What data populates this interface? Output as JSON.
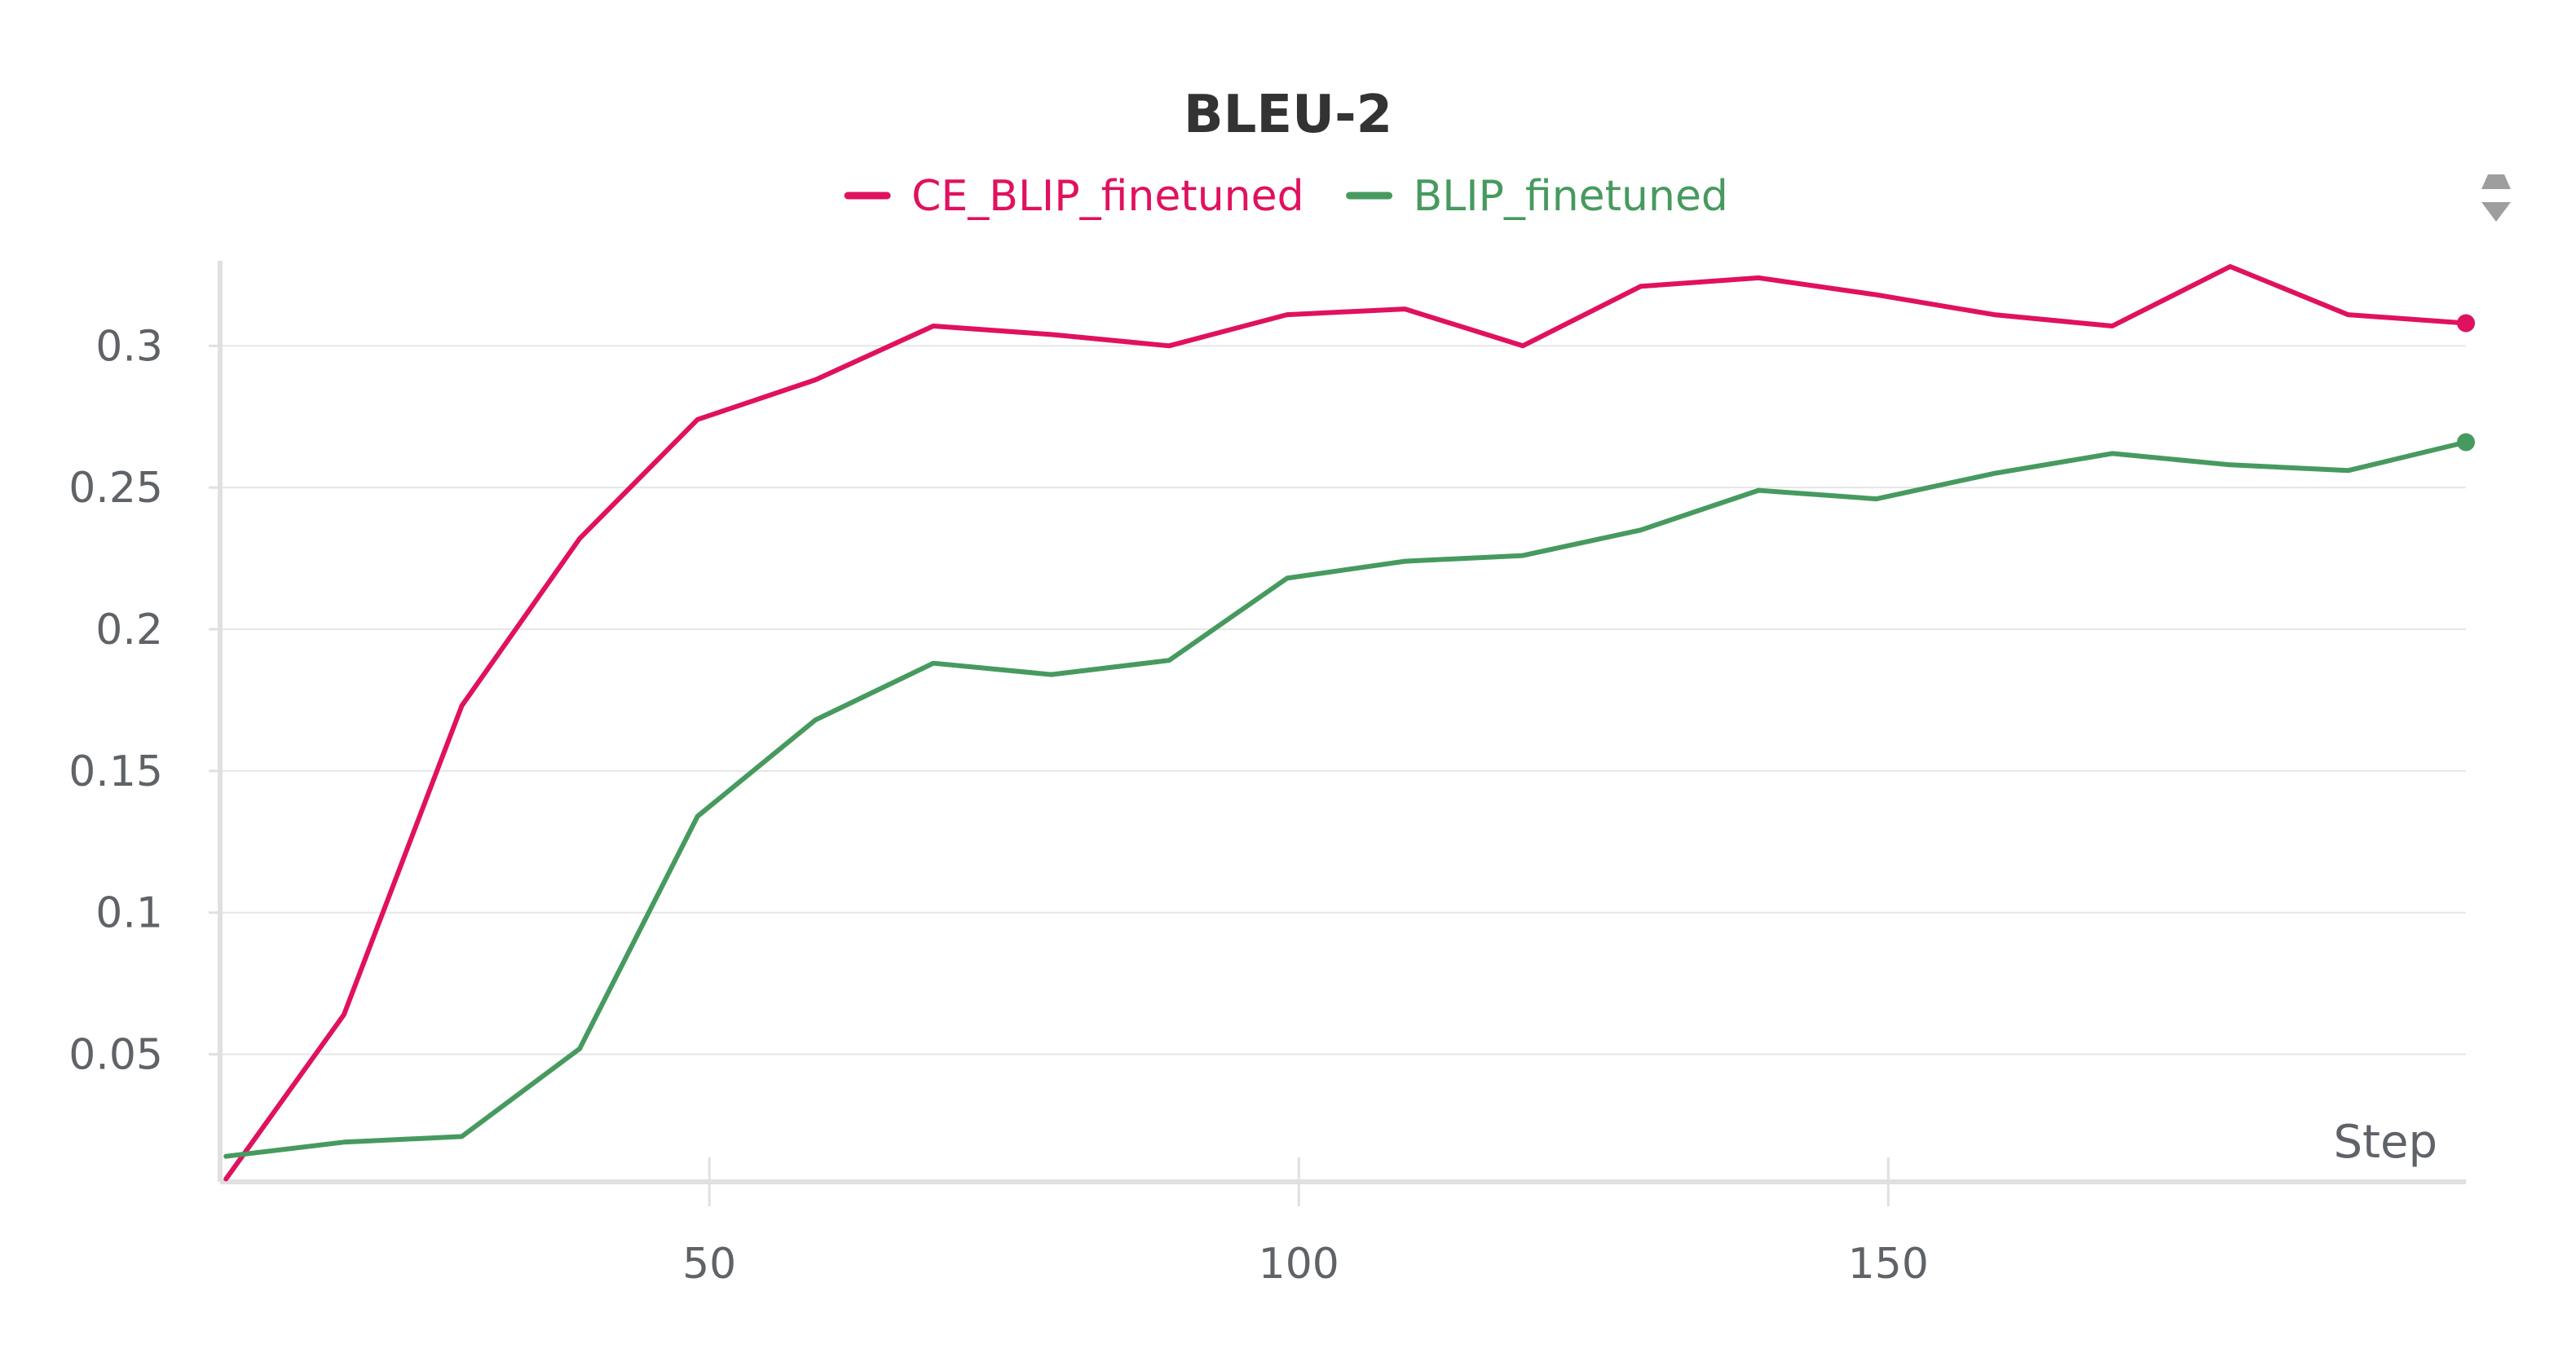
{
  "chart_data": {
    "type": "line",
    "title": "BLEU-2",
    "xlabel": "Step",
    "ylabel": "",
    "xlim": [
      8.5,
      199
    ],
    "ylim": [
      0.005,
      0.33
    ],
    "x_ticks": [
      50,
      100,
      150
    ],
    "y_ticks": [
      0.05,
      0.1,
      0.15,
      0.2,
      0.25,
      0.3
    ],
    "y_tick_labels": [
      "0.05",
      "0.1",
      "0.15",
      "0.2",
      "0.25",
      "0.3"
    ],
    "x_tick_labels": [
      "50",
      "100",
      "150"
    ],
    "grid": true,
    "legend_position": "top-center",
    "series": [
      {
        "name": "CE_BLIP_finetuned",
        "color": "#e0115f",
        "x": [
          9,
          19,
          29,
          39,
          49,
          59,
          69,
          79,
          89,
          99,
          109,
          119,
          129,
          139,
          149,
          159,
          169,
          179,
          189,
          199
        ],
        "y": [
          0.006,
          0.064,
          0.173,
          0.232,
          0.274,
          0.288,
          0.307,
          0.304,
          0.3,
          0.311,
          0.313,
          0.3,
          0.321,
          0.324,
          0.318,
          0.311,
          0.307,
          0.328,
          0.311,
          0.308
        ]
      },
      {
        "name": "BLIP_finetuned",
        "color": "#479a5f",
        "x": [
          9,
          19,
          29,
          39,
          49,
          59,
          69,
          79,
          89,
          99,
          109,
          119,
          129,
          139,
          149,
          159,
          169,
          179,
          189,
          199
        ],
        "y": [
          0.014,
          0.019,
          0.021,
          0.052,
          0.134,
          0.168,
          0.188,
          0.184,
          0.189,
          0.218,
          0.224,
          0.226,
          0.235,
          0.249,
          0.246,
          0.255,
          0.262,
          0.258,
          0.256,
          0.266
        ]
      }
    ]
  },
  "icons": {
    "legend_scroll": "chevron-up-down-icon"
  }
}
